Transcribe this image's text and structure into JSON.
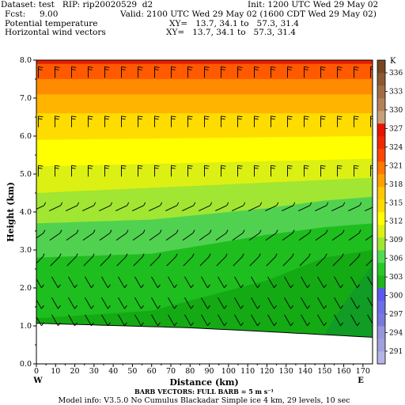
{
  "header": {
    "dataset_line": "Dataset: test   RIP: rip20020529  d2",
    "fcst_label": "Fcst:",
    "fcst_value": "9.00",
    "init_line": "Init: 1200 UTC Wed 29 May 02",
    "valid_line": "Valid: 2100 UTC Wed 29 May 02 (1600 CDT Wed 29 May 02)",
    "field1_label": "Potential temperature",
    "field1_xy": "XY=   13.7, 34.1 to   57.3, 31.4",
    "field2_label": "Horizontal wind vectors",
    "field2_xy": "XY=   13.7, 34.1 to   57.3, 31.4"
  },
  "footer": {
    "barb_line": "BARB VECTORS:  FULL BARB = 5 m s⁻¹",
    "model_line": "Model info: V3.5.0  No Cumulus  Blackadar   Simple ice     4 km,   29 levels,     10 sec"
  },
  "chart_data": {
    "type": "heatmap",
    "title": "Potential temperature",
    "xlabel": "Distance (km)",
    "ylabel": "Height (km)",
    "xlim": [
      0,
      175
    ],
    "ylim": [
      0,
      8
    ],
    "x_ticks": [
      "0",
      "10",
      "20",
      "30",
      "40",
      "50",
      "60",
      "70",
      "80",
      "90",
      "100",
      "110",
      "120",
      "130",
      "140",
      "150",
      "160",
      "170"
    ],
    "y_ticks": [
      "0.0",
      "1.0",
      "2.0",
      "3.0",
      "4.0",
      "5.0",
      "6.0",
      "7.0",
      "8.0"
    ],
    "x_end_labels": {
      "left": "W",
      "right": "E"
    },
    "colorbar_unit": "K",
    "colorbar_labels": [
      "291",
      "294",
      "297",
      "300",
      "303",
      "306",
      "309",
      "312",
      "315",
      "318",
      "321",
      "324",
      "327",
      "330",
      "333",
      "336"
    ],
    "colorbar_colors": [
      "#b4b4e6",
      "#a0a0dc",
      "#9696dc",
      "#7878dc",
      "#6e6ee6",
      "#5a5af0",
      "#1eb41e",
      "#28c828",
      "#50dc50",
      "#a0e632",
      "#dcf014",
      "#ffff00",
      "#ffdc00",
      "#ffc800",
      "#ffa000",
      "#ff7800",
      "#ff4600",
      "#f02800",
      "#e61400",
      "#c8a078",
      "#b4825a",
      "#a06e46",
      "#8c5a32",
      "#784620"
    ],
    "terrain_height_km": [
      [
        0,
        1.07
      ],
      [
        40,
        1.01
      ],
      [
        80,
        0.95
      ],
      [
        120,
        0.85
      ],
      [
        175,
        0.7
      ]
    ],
    "theta_levels": [
      {
        "value": 309,
        "height_km": [
          [
            0,
            1.2
          ],
          [
            60,
            1.4
          ],
          [
            120,
            2.2
          ],
          [
            150,
            2.8
          ],
          [
            175,
            3.0
          ]
        ]
      },
      {
        "value": 312,
        "height_km": [
          [
            0,
            2.8
          ],
          [
            60,
            2.9
          ],
          [
            120,
            3.4
          ],
          [
            150,
            3.6
          ],
          [
            175,
            3.7
          ]
        ]
      },
      {
        "value": 315,
        "height_km": [
          [
            0,
            3.7
          ],
          [
            60,
            3.8
          ],
          [
            120,
            4.1
          ],
          [
            150,
            4.3
          ],
          [
            175,
            4.4
          ]
        ]
      },
      {
        "value": 318,
        "height_km": [
          [
            0,
            4.5
          ],
          [
            175,
            4.9
          ]
        ]
      },
      {
        "value": 321,
        "height_km": [
          [
            0,
            5.2
          ],
          [
            175,
            5.4
          ]
        ]
      },
      {
        "value": 324,
        "height_km": [
          [
            0,
            5.9
          ],
          [
            175,
            6.0
          ]
        ]
      },
      {
        "value": 327,
        "height_km": [
          [
            0,
            6.6
          ],
          [
            175,
            6.6
          ]
        ]
      },
      {
        "value": 330,
        "height_km": [
          [
            0,
            7.1
          ],
          [
            175,
            7.1
          ]
        ]
      },
      {
        "value": 333,
        "height_km": [
          [
            0,
            7.5
          ],
          [
            175,
            7.5
          ]
        ]
      },
      {
        "value": 336,
        "height_km": [
          [
            0,
            7.9
          ],
          [
            175,
            7.9
          ]
        ]
      }
    ],
    "wind_barb_levels_km": [
      7.7,
      6.4,
      5.1,
      4.1,
      3.35,
      2.7,
      2.15,
      1.6,
      1.15
    ],
    "wind_barb_columns": 21
  }
}
